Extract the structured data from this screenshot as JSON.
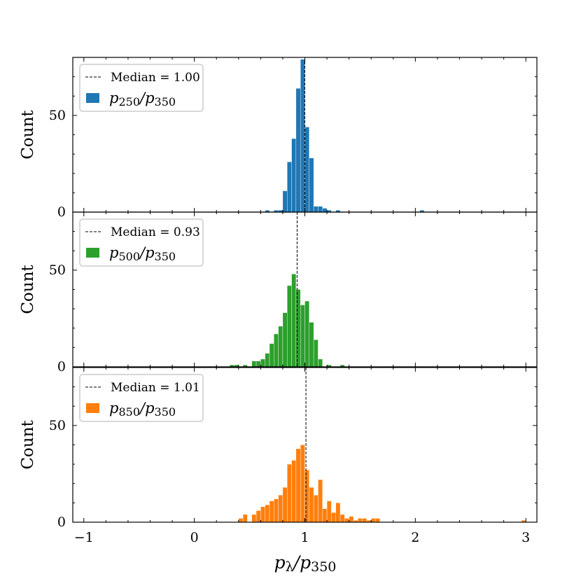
{
  "chart_data": [
    {
      "type": "histogram",
      "bin_width": 0.04,
      "color": "#1f77b4",
      "ylabel": "Count",
      "ylim": [
        0,
        80
      ],
      "yticks": [
        0,
        50
      ],
      "median": 1.0,
      "legend_median_label": "Median = 1.00",
      "series_label": {
        "p1": "p",
        "s1": "250",
        "slash": "/",
        "p2": "p",
        "s2": "350"
      },
      "bins": [
        {
          "x": 0.64,
          "count": 1
        },
        {
          "x": 0.72,
          "count": 1
        },
        {
          "x": 0.76,
          "count": 1
        },
        {
          "x": 0.8,
          "count": 11
        },
        {
          "x": 0.84,
          "count": 26
        },
        {
          "x": 0.88,
          "count": 38
        },
        {
          "x": 0.92,
          "count": 64
        },
        {
          "x": 0.96,
          "count": 79
        },
        {
          "x": 1.0,
          "count": 44
        },
        {
          "x": 1.04,
          "count": 28
        },
        {
          "x": 1.08,
          "count": 3
        },
        {
          "x": 1.12,
          "count": 3
        },
        {
          "x": 1.16,
          "count": 2
        },
        {
          "x": 1.2,
          "count": 1
        },
        {
          "x": 1.28,
          "count": 1
        },
        {
          "x": 2.04,
          "count": 1
        }
      ]
    },
    {
      "type": "histogram",
      "bin_width": 0.04,
      "color": "#2ca02c",
      "ylabel": "Count",
      "ylim": [
        0,
        80
      ],
      "yticks": [
        0,
        50
      ],
      "median": 0.93,
      "legend_median_label": "Median = 0.93",
      "series_label": {
        "p1": "p",
        "s1": "500",
        "slash": "/",
        "p2": "p",
        "s2": "350"
      },
      "bins": [
        {
          "x": 0.32,
          "count": 1
        },
        {
          "x": 0.36,
          "count": 1
        },
        {
          "x": 0.44,
          "count": 1
        },
        {
          "x": 0.52,
          "count": 3
        },
        {
          "x": 0.56,
          "count": 3
        },
        {
          "x": 0.6,
          "count": 4
        },
        {
          "x": 0.64,
          "count": 7
        },
        {
          "x": 0.68,
          "count": 12
        },
        {
          "x": 0.72,
          "count": 17
        },
        {
          "x": 0.76,
          "count": 21
        },
        {
          "x": 0.8,
          "count": 28
        },
        {
          "x": 0.84,
          "count": 42
        },
        {
          "x": 0.88,
          "count": 48
        },
        {
          "x": 0.92,
          "count": 40
        },
        {
          "x": 0.96,
          "count": 32
        },
        {
          "x": 1.0,
          "count": 34
        },
        {
          "x": 1.04,
          "count": 23
        },
        {
          "x": 1.08,
          "count": 14
        },
        {
          "x": 1.12,
          "count": 4
        },
        {
          "x": 1.2,
          "count": 1
        },
        {
          "x": 1.32,
          "count": 1
        }
      ]
    },
    {
      "type": "histogram",
      "bin_width": 0.04,
      "color": "#ff7f0e",
      "ylabel": "Count",
      "ylim": [
        0,
        80
      ],
      "yticks": [
        0,
        50
      ],
      "median": 1.01,
      "legend_median_label": "Median = 1.01",
      "series_label": {
        "p1": "p",
        "s1": "850",
        "slash": "/",
        "p2": "p",
        "s2": "350"
      },
      "xlabel": {
        "p1": "p",
        "s1": "λ",
        "slash": "/",
        "p2": "p",
        "s2": "350"
      },
      "bins": [
        {
          "x": 0.4,
          "count": 2
        },
        {
          "x": 0.44,
          "count": 4
        },
        {
          "x": 0.52,
          "count": 4
        },
        {
          "x": 0.56,
          "count": 6
        },
        {
          "x": 0.6,
          "count": 8
        },
        {
          "x": 0.64,
          "count": 9
        },
        {
          "x": 0.68,
          "count": 11
        },
        {
          "x": 0.72,
          "count": 12
        },
        {
          "x": 0.76,
          "count": 14
        },
        {
          "x": 0.8,
          "count": 18
        },
        {
          "x": 0.84,
          "count": 30
        },
        {
          "x": 0.88,
          "count": 32
        },
        {
          "x": 0.92,
          "count": 38
        },
        {
          "x": 0.96,
          "count": 40
        },
        {
          "x": 1.0,
          "count": 27
        },
        {
          "x": 1.04,
          "count": 18
        },
        {
          "x": 1.08,
          "count": 14
        },
        {
          "x": 1.12,
          "count": 22
        },
        {
          "x": 1.16,
          "count": 7
        },
        {
          "x": 1.2,
          "count": 11
        },
        {
          "x": 1.24,
          "count": 5
        },
        {
          "x": 1.28,
          "count": 10
        },
        {
          "x": 1.32,
          "count": 4
        },
        {
          "x": 1.36,
          "count": 2
        },
        {
          "x": 1.4,
          "count": 3
        },
        {
          "x": 1.44,
          "count": 1
        },
        {
          "x": 1.48,
          "count": 2
        },
        {
          "x": 1.52,
          "count": 2
        },
        {
          "x": 1.56,
          "count": 1
        },
        {
          "x": 1.6,
          "count": 2
        },
        {
          "x": 1.64,
          "count": 2
        },
        {
          "x": 2.96,
          "count": 1
        }
      ]
    }
  ],
  "shared_x_axis": {
    "xlim": [
      -1.1,
      3.1
    ],
    "xticks": [
      -1,
      0,
      1,
      2,
      3
    ],
    "xtick_labels": [
      "−1",
      "0",
      "1",
      "2",
      "3"
    ],
    "minor_step": 0.2
  }
}
